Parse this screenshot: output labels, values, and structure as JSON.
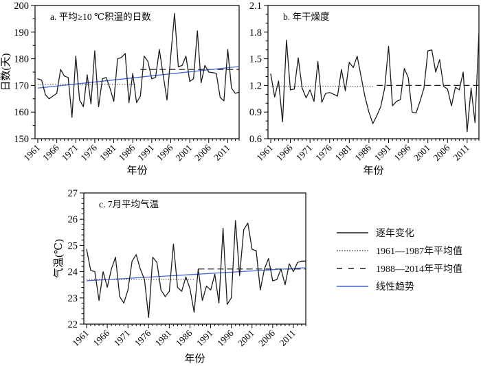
{
  "figure": {
    "background": "#ffffff",
    "colors": {
      "series": "#1c1c1c",
      "trend": "#4466dd",
      "axis": "#000000",
      "text": "#000000"
    },
    "legend": {
      "items": [
        {
          "style": "solid-black",
          "label": "逐年变化"
        },
        {
          "style": "dotted-black",
          "label": "1961—1987年平均值"
        },
        {
          "style": "dashed-black",
          "label": "1988—2014年平均值"
        },
        {
          "style": "solid-blue",
          "label": "线性趋势"
        }
      ]
    }
  },
  "chart_data": [
    {
      "type": "line",
      "panel": "a",
      "title": "a. 平均≥10 ℃积温的日数",
      "xlabel": "年份",
      "ylabel": "日数(天)",
      "ylim": [
        150,
        200
      ],
      "ytick_step": 10,
      "yminor_step": 5,
      "y_decimals": 0,
      "grid": false,
      "years": {
        "start": 1961,
        "end": 2014,
        "label_step": 5
      },
      "values": [
        172.5,
        172,
        166.5,
        165,
        166,
        167,
        176,
        173.5,
        173,
        158,
        181,
        164.5,
        162,
        174,
        163,
        183,
        162,
        172.5,
        173,
        169,
        164,
        180,
        180.5,
        182,
        163.5,
        174.5,
        163.5,
        166,
        181,
        179,
        172.5,
        173,
        183.5,
        174,
        164.5,
        181,
        197,
        177,
        177.5,
        181,
        171.5,
        172.5,
        190.5,
        171,
        177.5,
        175,
        174.8,
        174.5,
        165.5,
        164.2,
        183.5,
        169,
        167,
        167.5
      ],
      "mean_lines": [
        {
          "label": "1961—1987年平均值",
          "years": [
            1961,
            1987
          ],
          "value": 170.4,
          "style": "dotted"
        },
        {
          "label": "1988—2014年平均值",
          "years": [
            1988,
            2014
          ],
          "value": 176.0,
          "style": "dashed"
        }
      ],
      "trend_line": {
        "start_value": 169.0,
        "end_value": 177.1
      }
    },
    {
      "type": "line",
      "panel": "b",
      "title": "b. 年干燥度",
      "xlabel": "年份",
      "ylabel": "",
      "ylim": [
        0.6,
        2.1
      ],
      "ytick_step": 0.3,
      "yminor_step": 0.1,
      "y_decimals": 1,
      "grid": false,
      "years": {
        "start": 1961,
        "end": 2014,
        "label_step": 5
      },
      "values": [
        1.33,
        1.07,
        1.25,
        0.79,
        1.71,
        1.15,
        1.16,
        1.51,
        1.17,
        1.06,
        1.15,
        1.02,
        1.47,
        1.01,
        1.11,
        1.12,
        1.1,
        1.08,
        1.38,
        1.14,
        1.46,
        1.4,
        1.53,
        1.3,
        1.07,
        0.9,
        0.77,
        0.86,
        0.96,
        1.17,
        1.64,
        0.97,
        1.02,
        1.04,
        1.39,
        1.29,
        0.9,
        0.89,
        1.02,
        1.17,
        1.59,
        1.6,
        1.35,
        1.49,
        1.19,
        1.16,
        0.97,
        1.18,
        1.15,
        1.35,
        0.68,
        1.17,
        0.78,
        1.8
      ],
      "mean_lines": [
        {
          "label": "1961—1987年平均值",
          "years": [
            1961,
            1987
          ],
          "value": 1.19,
          "style": "dotted"
        },
        {
          "label": "1988—2014年平均值",
          "years": [
            1988,
            2014
          ],
          "value": 1.2,
          "style": "dashed"
        }
      ],
      "trend_line": null
    },
    {
      "type": "line",
      "panel": "c",
      "title": "c. 7月平均气温",
      "xlabel": "年份",
      "ylabel": "气温(℃)",
      "ylim": [
        22,
        27
      ],
      "ytick_step": 1,
      "yminor_step": 0.2,
      "y_decimals": 0,
      "grid": false,
      "years": {
        "start": 1961,
        "end": 2014,
        "label_step": 5
      },
      "values": [
        24.85,
        24.05,
        24.0,
        22.9,
        24.0,
        23.4,
        24.1,
        24.55,
        23.05,
        22.8,
        23.3,
        24.4,
        24.65,
        24.1,
        23.7,
        22.25,
        24.55,
        24.35,
        23.3,
        23.05,
        23.25,
        25.05,
        23.4,
        23.25,
        23.8,
        23.35,
        22.45,
        24.1,
        22.9,
        23.45,
        23.3,
        23.9,
        22.8,
        25.65,
        22.75,
        23.0,
        25.95,
        23.85,
        25.6,
        25.85,
        24.85,
        24.8,
        23.3,
        24.1,
        24.5,
        23.65,
        23.7,
        24.1,
        23.5,
        24.3,
        24.0,
        24.35,
        24.4,
        24.4
      ],
      "mean_lines": [
        {
          "label": "1961—1987年平均值",
          "years": [
            1961,
            1987
          ],
          "value": 23.7,
          "style": "dotted"
        },
        {
          "label": "1988—2014年平均值",
          "years": [
            1988,
            2014
          ],
          "value": 24.1,
          "style": "dashed"
        }
      ],
      "trend_line": {
        "start_value": 23.65,
        "end_value": 24.15
      }
    }
  ]
}
